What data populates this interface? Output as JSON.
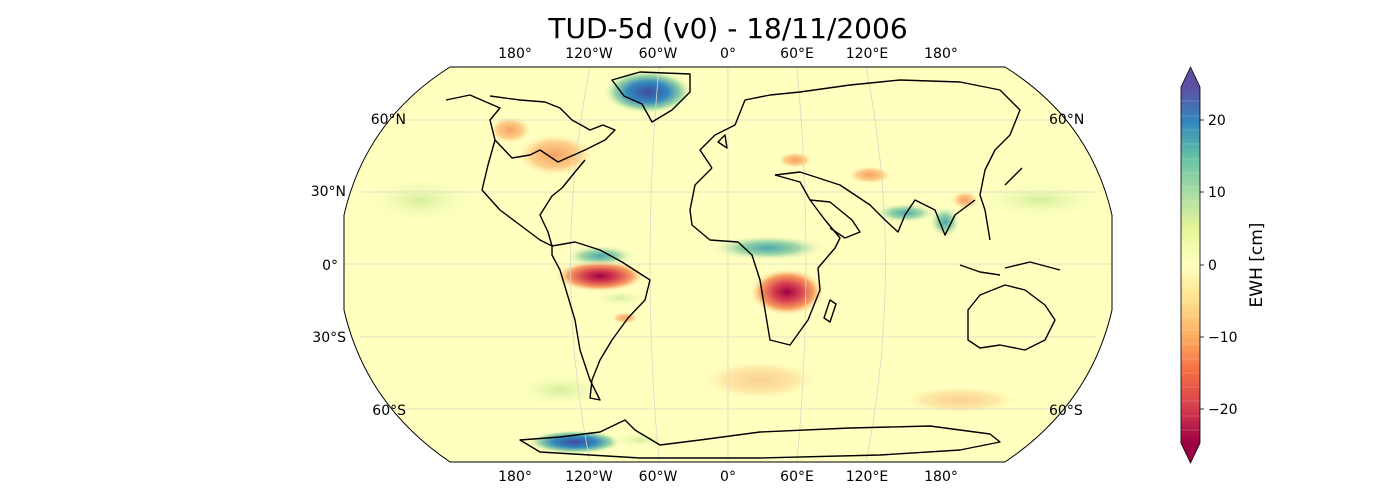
{
  "title": "TUD-5d (v0) - 18/11/2006",
  "lon_labels_top": [
    "180°",
    "120°W",
    "60°W",
    "0°",
    "60°E",
    "120°E",
    "180°"
  ],
  "lon_labels_bottom": [
    "180°",
    "120°W",
    "60°W",
    "0°",
    "60°E",
    "120°E",
    "180°"
  ],
  "lat_labels_left": [
    "60°N",
    "30°N",
    "0°",
    "30°S",
    "60°S"
  ],
  "lat_labels_right": [
    "60°N",
    "60°S"
  ],
  "colorbar": {
    "label": "EWH [cm]",
    "ticks": [
      "20",
      "10",
      "0",
      "−10",
      "−20"
    ],
    "range": [
      -25,
      25
    ],
    "extend": "both",
    "colormap": [
      "#9e0142",
      "#d53e4f",
      "#f46d43",
      "#fdae61",
      "#fee08b",
      "#ffffbf",
      "#e6f598",
      "#abdda4",
      "#66c2a5",
      "#3288bd",
      "#5e4fa2"
    ]
  },
  "colors": {
    "ocean_background": "#ffffbf",
    "coastline": "#000000"
  }
}
